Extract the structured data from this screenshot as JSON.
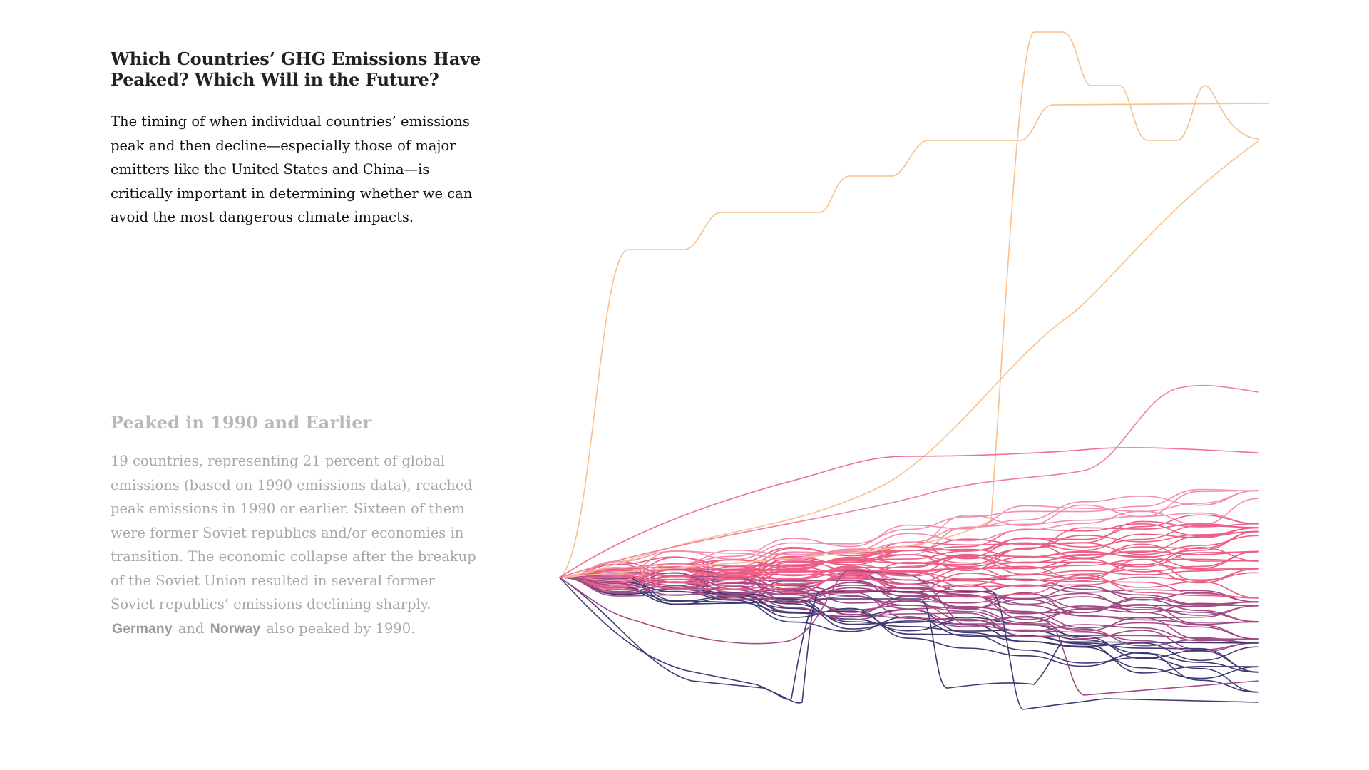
{
  "header": {
    "title": "Which Countries’ GHG Emissions Have Peaked? Which Will in the Future?",
    "intro": "The timing of when individual countries’ emissions peak and then decline—especially those of major emitters like the United States and China—is critically important in determining whether we can avoid the most dangerous climate impacts."
  },
  "section": {
    "title": "Peaked in 1990 and Earlier",
    "body_part1": "19 countries, representing 21 percent of global emissions (based on 1990 emissions data), reached peak emissions in 1990 or earlier. Sixteen of them were former Soviet republics and/or economies in transition. The economic collapse after the breakup of the Soviet Union resulted in several former Soviet republics’ emissions declining sharply.",
    "country_1": "Germany",
    "connector": "and",
    "country_2": "Norway",
    "body_part2": "also peaked by 1990."
  },
  "colors": {
    "highest": "#f7c08c",
    "high": "#f28db0",
    "mid": "#ec5f86",
    "low": "#a24a85",
    "lowest": "#3f3a72"
  },
  "chart_data": {
    "type": "line",
    "series_count": 60,
    "note_visible_axes": "none"
  }
}
